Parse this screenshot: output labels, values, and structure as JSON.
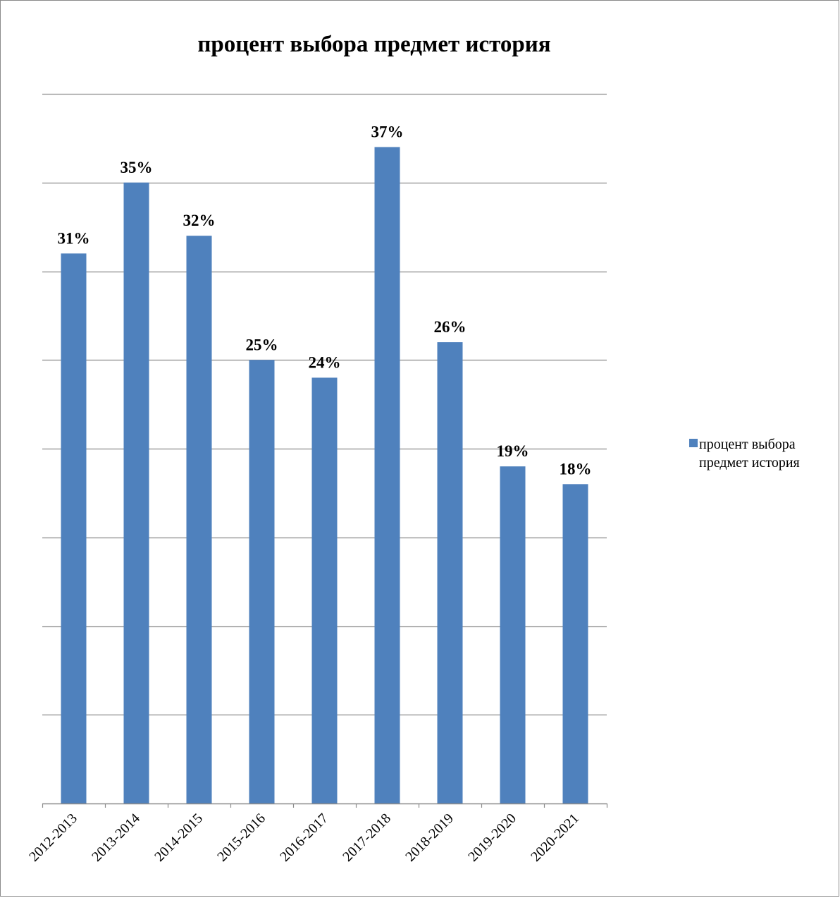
{
  "chart_data": {
    "type": "bar",
    "title": "процент выбора предмет история",
    "categories": [
      "2012-2013",
      "2013-2014",
      "2014-2015",
      "2015-2016",
      "2016-2017",
      "2017-2018",
      "2018-2019",
      "2019-2020",
      "2020-2021"
    ],
    "series": [
      {
        "name": "процент выбора предмет история",
        "values": [
          31,
          35,
          32,
          25,
          24,
          37,
          26,
          19,
          18
        ],
        "labels": [
          "31%",
          "35%",
          "32%",
          "25%",
          "24%",
          "37%",
          "26%",
          "19%",
          "18%"
        ],
        "color": "#4f81bd"
      }
    ],
    "ylim": [
      0,
      40
    ],
    "grid": true,
    "legend_position": "right"
  }
}
